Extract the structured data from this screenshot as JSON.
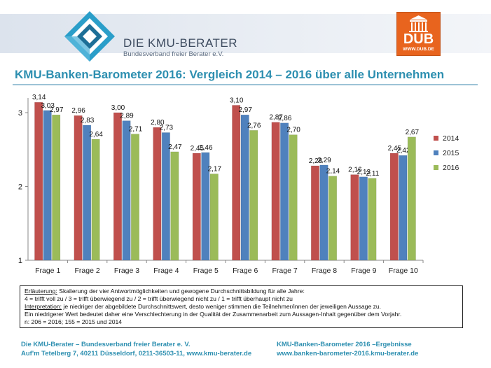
{
  "header": {
    "logo_title": "DIE KMU-BERATER",
    "logo_subtitle": "Bundesverband freier Berater e.V.",
    "badge_text": "DUB",
    "badge_url": "WWW.DUB.DE"
  },
  "page_title": "KMU-Banken-Barometer 2016: Vergleich 2014 – 2016 über alle Unternehmen",
  "colors": {
    "2014": "#c0504d",
    "2015": "#4f81bd",
    "2016": "#9bbb59",
    "title": "#2d8fb0"
  },
  "chart_data": {
    "type": "bar",
    "title": "",
    "xlabel": "",
    "ylabel": "",
    "categories": [
      "Frage 1",
      "Frage 2",
      "Frage 3",
      "Frage 4",
      "Frage 5",
      "Frage 6",
      "Frage 7",
      "Frage 8",
      "Frage 9",
      "Frage 10"
    ],
    "ylim": [
      1,
      3.3
    ],
    "yticks": [
      "1",
      "2",
      "3"
    ],
    "yticks_values": [
      1,
      2,
      3
    ],
    "grid": false,
    "legend_position": "right",
    "series": [
      {
        "name": "2014",
        "values": [
          3.14,
          2.96,
          3.0,
          2.8,
          2.45,
          3.1,
          2.87,
          2.28,
          2.16,
          2.45
        ],
        "labels": [
          "3,14",
          "2,96",
          "3,00",
          "2,80",
          "2,45",
          "3,10",
          "2,87",
          "2,28",
          "2,16",
          "2,45"
        ]
      },
      {
        "name": "2015",
        "values": [
          3.03,
          2.83,
          2.89,
          2.73,
          2.46,
          2.97,
          2.86,
          2.29,
          2.13,
          2.42
        ],
        "labels": [
          "3,03",
          "2,83",
          "2,89",
          "2,73",
          "2,46",
          "2,97",
          "2,86",
          "2,29",
          "2,13",
          "2,42"
        ]
      },
      {
        "name": "2016",
        "values": [
          2.97,
          2.64,
          2.71,
          2.47,
          2.17,
          2.76,
          2.7,
          2.14,
          2.11,
          2.67
        ],
        "labels": [
          "2,97",
          "2,64",
          "2,71",
          "2,47",
          "2,17",
          "2,76",
          "2,70",
          "2,14",
          "2,11",
          "2,67"
        ]
      }
    ]
  },
  "note": {
    "label1": "Erläuterung:",
    "line1": " Skalierung der vier Antwortmöglichkeiten und gewogene Durchschnittsbildung für alle Jahre:",
    "line2": "4 = trifft voll zu / 3 = trifft überwiegend zu / 2 = trifft überwiegend nicht zu / 1 = trifft überhaupt nicht zu",
    "label2": "Interpretation:",
    "line3": " je niedriger der abgebildete Durchschnittswert, desto weniger stimmen die Teilnehmer/innen der jeweiligen Aussage zu.",
    "line4": "Ein niedrigerer Wert bedeutet daher eine Verschlechterung in der Qualität der Zusammenarbeit zum Aussagen-Inhalt gegenüber dem Vorjahr.",
    "line5": "n: 206 = 2016; 155 = 2015 und 2014"
  },
  "footer": {
    "left_line1": "Die KMU-Berater – Bundesverband freier Berater e. V.",
    "left_line2": "Auf'm Tetelberg 7, 40211 Düsseldorf,  0211-36503-11,  www.kmu-berater.de",
    "right_line1": "KMU-Banken-Barometer  2016 –Ergebnisse",
    "right_line2": "www.banken-barometer-2016.kmu-berater.de"
  }
}
